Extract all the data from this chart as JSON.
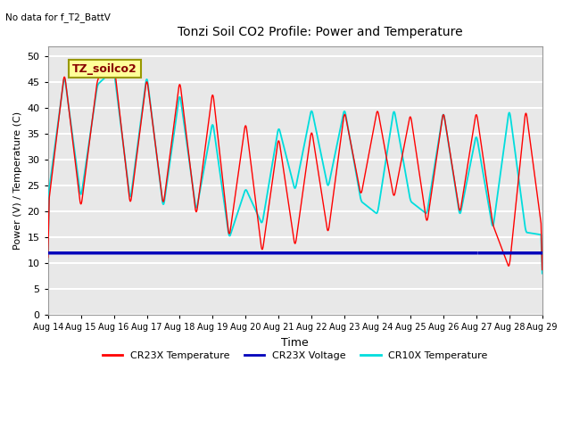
{
  "title": "Tonzi Soil CO2 Profile: Power and Temperature",
  "subtitle": "No data for f_T2_BattV",
  "ylabel": "Power (V) / Temperature (C)",
  "xlabel": "Time",
  "ylim": [
    0,
    52
  ],
  "yticks": [
    0,
    5,
    10,
    15,
    20,
    25,
    30,
    35,
    40,
    45,
    50
  ],
  "xtick_labels": [
    "Aug 14",
    "Aug 15",
    "Aug 16",
    "Aug 17",
    "Aug 18",
    "Aug 19",
    "Aug 20",
    "Aug 21",
    "Aug 22",
    "Aug 23",
    "Aug 24",
    "Aug 25",
    "Aug 26",
    "Aug 27",
    "Aug 28",
    "Aug 29"
  ],
  "cr23x_temp_color": "#FF0000",
  "cr10x_temp_color": "#00DDDD",
  "cr23x_volt_color": "#0000BB",
  "legend_box_color": "#FFFF99",
  "legend_box_edge": "#999900",
  "inset_label": "TZ_soilco2",
  "background_color": "#E8E8E8",
  "fig_background": "#FFFFFF",
  "voltage_value": 12.0,
  "cr23x_keypoints": {
    "peaks": [
      20.5,
      47.0,
      20.5,
      45.5,
      49.0,
      21.0,
      46.0,
      21.0,
      45.5,
      19.0,
      43.5,
      14.8,
      37.5,
      11.8,
      34.5,
      13.0,
      36.0,
      15.5,
      39.5,
      23.0,
      40.0,
      22.5,
      39.0,
      17.5,
      39.5,
      19.5,
      39.5,
      17.5,
      9.0,
      40.0,
      16.0
    ],
    "times": [
      0.0,
      0.5,
      1.0,
      1.5,
      2.0,
      2.5,
      3.0,
      3.5,
      4.0,
      4.5,
      5.0,
      5.5,
      6.0,
      6.5,
      7.0,
      7.5,
      8.0,
      8.5,
      9.0,
      9.5,
      10.0,
      10.5,
      11.0,
      11.5,
      12.0,
      12.5,
      13.0,
      13.5,
      14.0,
      14.5,
      15.0
    ]
  },
  "cr10x_keypoints": {
    "peaks": [
      22.5,
      46.5,
      22.5,
      44.5,
      47.5,
      22.0,
      46.5,
      20.5,
      43.0,
      20.0,
      37.5,
      14.8,
      24.5,
      17.5,
      36.5,
      24.0,
      40.0,
      24.5,
      40.0,
      22.0,
      19.5,
      40.0,
      22.0,
      19.5,
      39.5,
      19.0,
      35.0,
      16.5,
      40.0,
      16.0
    ],
    "times": [
      0.0,
      0.5,
      1.0,
      1.5,
      2.0,
      2.5,
      3.0,
      3.5,
      4.0,
      4.5,
      5.0,
      5.5,
      6.0,
      6.5,
      7.0,
      7.5,
      8.0,
      8.5,
      9.0,
      9.5,
      10.0,
      10.5,
      11.0,
      11.5,
      12.0,
      12.5,
      13.0,
      13.5,
      14.0,
      14.5
    ]
  },
  "figsize": [
    6.4,
    4.8
  ],
  "dpi": 100
}
